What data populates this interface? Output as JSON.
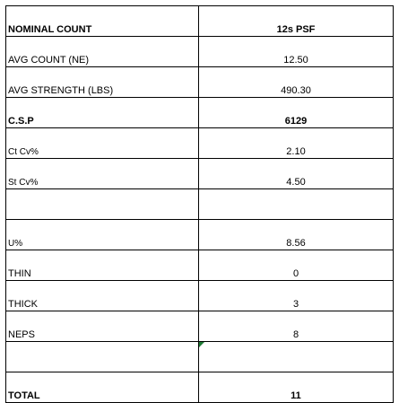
{
  "table": {
    "rows": [
      [
        "NOMINAL COUNT",
        "12s PSF"
      ],
      [
        "AVG COUNT (NE)",
        "12.50"
      ],
      [
        "AVG STRENGTH (LBS)",
        "490.30"
      ],
      [
        "C.S.P",
        "6129"
      ],
      [
        "Ct Cv%",
        "2.10"
      ],
      [
        "St Cv%",
        "4.50"
      ],
      [
        "U%",
        "8.56"
      ],
      [
        "THIN",
        "0"
      ],
      [
        "THICK",
        "3"
      ],
      [
        "NEPS",
        "8"
      ],
      [
        "TOTAL",
        "11"
      ]
    ]
  }
}
